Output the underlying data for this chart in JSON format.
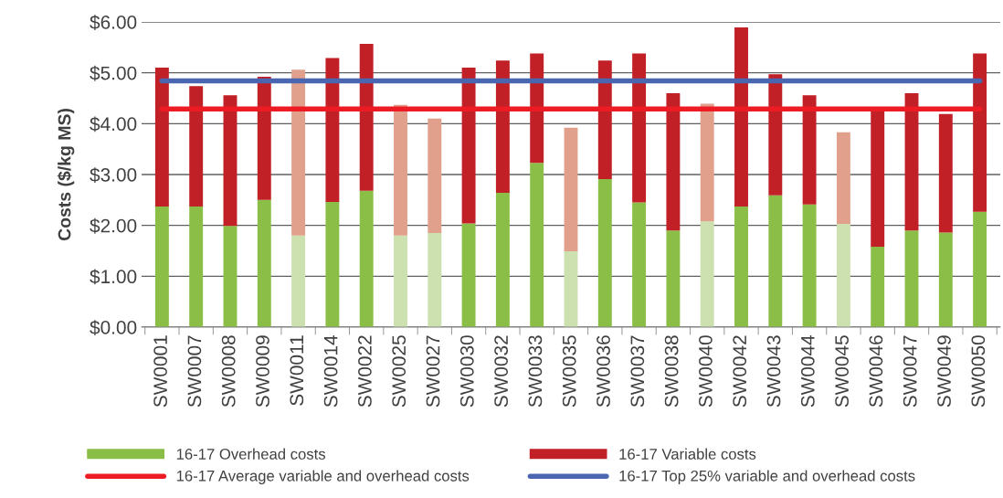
{
  "chart_data": {
    "type": "bar",
    "stacked": true,
    "ylabel": "Costs ($/kg MS)",
    "categories": [
      "SW0001",
      "SW0007",
      "SW0008",
      "SW0009",
      "SW0011",
      "SW0014",
      "SW0022",
      "SW0025",
      "SW0027",
      "SW0030",
      "SW0032",
      "SW0033",
      "SW0035",
      "SW0036",
      "SW0037",
      "SW0038",
      "SW0040",
      "SW0042",
      "SW0043",
      "SW0044",
      "SW0045",
      "SW0046",
      "SW0047",
      "SW0049",
      "SW0050"
    ],
    "series": [
      {
        "name": "16-17 Overhead costs",
        "color": "#8bbe46",
        "colors": [
          "#8bbe46",
          "#8bbe46",
          "#8bbe46",
          "#8bbe46",
          "#cce0b0",
          "#8bbe46",
          "#8bbe46",
          "#cce0b0",
          "#cce0b0",
          "#8bbe46",
          "#8bbe46",
          "#8bbe46",
          "#cce0b0",
          "#8bbe46",
          "#8bbe46",
          "#8bbe46",
          "#cce0b0",
          "#8bbe46",
          "#8bbe46",
          "#8bbe46",
          "#cce0b0",
          "#8bbe46",
          "#8bbe46",
          "#8bbe46",
          "#8bbe46"
        ],
        "values": [
          2.37,
          2.37,
          1.99,
          2.5,
          1.8,
          2.46,
          2.68,
          1.8,
          1.85,
          2.04,
          2.64,
          3.23,
          1.49,
          2.91,
          2.45,
          1.9,
          2.08,
          2.37,
          2.59,
          2.41,
          2.03,
          1.58,
          1.9,
          1.86,
          2.27
        ]
      },
      {
        "name": "16-17 Variable costs",
        "color": "#c12027",
        "colors": [
          "#c12027",
          "#c12027",
          "#c12027",
          "#c12027",
          "#e0a08c",
          "#c12027",
          "#c12027",
          "#e0a08c",
          "#e0a08c",
          "#c12027",
          "#c12027",
          "#c12027",
          "#e0a08c",
          "#c12027",
          "#c12027",
          "#c12027",
          "#e0a08c",
          "#c12027",
          "#c12027",
          "#c12027",
          "#e0a08c",
          "#c12027",
          "#c12027",
          "#c12027",
          "#c12027"
        ],
        "values": [
          2.73,
          2.37,
          2.57,
          2.42,
          3.26,
          2.83,
          2.89,
          2.57,
          2.25,
          3.06,
          2.6,
          2.15,
          2.43,
          2.33,
          2.93,
          2.7,
          2.31,
          3.52,
          2.38,
          2.15,
          1.8,
          2.71,
          2.7,
          2.33,
          3.11
        ]
      },
      {
        "name": "16-17 Average variable and overhead costs",
        "type": "line",
        "color": "#ed1c24",
        "values": [
          4.29,
          4.29,
          4.29,
          4.29,
          4.29,
          4.29,
          4.29,
          4.29,
          4.29,
          4.29,
          4.29,
          4.29,
          4.29,
          4.29,
          4.29,
          4.29,
          4.29,
          4.29,
          4.29,
          4.29,
          4.29,
          4.29,
          4.29,
          4.29,
          4.29
        ]
      },
      {
        "name": "16-17 Top 25% variable and overhead costs",
        "type": "line",
        "color": "#4a66b0",
        "values": [
          4.84,
          4.84,
          4.84,
          4.84,
          4.84,
          4.84,
          4.84,
          4.84,
          4.84,
          4.84,
          4.84,
          4.84,
          4.84,
          4.84,
          4.84,
          4.84,
          4.84,
          4.84,
          4.84,
          4.84,
          4.84,
          4.84,
          4.84,
          4.84,
          4.84
        ]
      }
    ],
    "ylim": [
      0,
      6
    ],
    "yticks": [
      {
        "value": 0,
        "label": "$0.00"
      },
      {
        "value": 1,
        "label": "$1.00"
      },
      {
        "value": 2,
        "label": "$2.00"
      },
      {
        "value": 3,
        "label": "$3.00"
      },
      {
        "value": 4,
        "label": "$4.00"
      },
      {
        "value": 5,
        "label": "$5.00"
      },
      {
        "value": 6,
        "label": "$6.00"
      }
    ],
    "grid": "y",
    "legend": "bottom"
  }
}
